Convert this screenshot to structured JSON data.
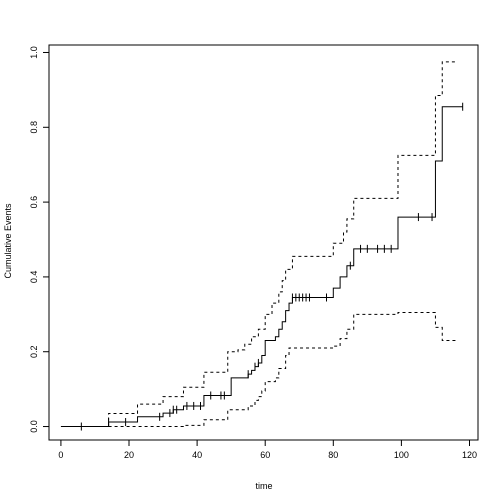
{
  "chart_data": {
    "type": "line",
    "xlabel": "time",
    "ylabel": "Cumulative Events",
    "xlim": [
      -3.5,
      122.5
    ],
    "ylim": [
      -0.036,
      1.02
    ],
    "grid": false,
    "x_ticks": [
      0,
      20,
      40,
      60,
      80,
      100,
      120
    ],
    "y_ticks": [
      0.0,
      0.2,
      0.4,
      0.6,
      0.8,
      1.0
    ],
    "x_tick_labels": [
      "0",
      "20",
      "40",
      "60",
      "80",
      "100",
      "120"
    ],
    "y_tick_labels": [
      "0.0",
      "0.2",
      "0.4",
      "0.6",
      "0.8",
      "1.0"
    ],
    "series": [
      {
        "style": "solid",
        "steps": [
          [
            0,
            0
          ],
          [
            14,
            0.012
          ],
          [
            22.5,
            0.026
          ],
          [
            29,
            0.026
          ],
          [
            30,
            0.036
          ],
          [
            33,
            0.045
          ],
          [
            36,
            0.055
          ],
          [
            40,
            0.055
          ],
          [
            42,
            0.083
          ],
          [
            49,
            0.083
          ],
          [
            50,
            0.13
          ],
          [
            55,
            0.14
          ],
          [
            56,
            0.15
          ],
          [
            57,
            0.16
          ],
          [
            58,
            0.17
          ],
          [
            59,
            0.19
          ],
          [
            60,
            0.23
          ],
          [
            62,
            0.23
          ],
          [
            63,
            0.24
          ],
          [
            64,
            0.26
          ],
          [
            65,
            0.28
          ],
          [
            66,
            0.31
          ],
          [
            67,
            0.33
          ],
          [
            68,
            0.345
          ],
          [
            80,
            0.37
          ],
          [
            82,
            0.4
          ],
          [
            84,
            0.43
          ],
          [
            86,
            0.475
          ],
          [
            99,
            0.56
          ],
          [
            110,
            0.71
          ],
          [
            112,
            0.855
          ],
          [
            118,
            0.855
          ]
        ]
      },
      {
        "style": "dashed",
        "steps": [
          [
            14,
            0
          ],
          [
            14,
            0.035
          ],
          [
            22.5,
            0.06
          ],
          [
            30,
            0.08
          ],
          [
            36,
            0.105
          ],
          [
            42,
            0.145
          ],
          [
            49,
            0.2
          ],
          [
            52,
            0.205
          ],
          [
            54,
            0.22
          ],
          [
            56,
            0.24
          ],
          [
            58,
            0.26
          ],
          [
            60,
            0.3
          ],
          [
            62,
            0.33
          ],
          [
            64,
            0.36
          ],
          [
            65,
            0.39
          ],
          [
            66,
            0.42
          ],
          [
            68,
            0.455
          ],
          [
            80,
            0.49
          ],
          [
            83,
            0.52
          ],
          [
            84,
            0.555
          ],
          [
            86,
            0.61
          ],
          [
            99,
            0.725
          ],
          [
            110,
            0.885
          ],
          [
            112,
            0.975
          ],
          [
            116,
            0.975
          ]
        ]
      },
      {
        "style": "dashed",
        "steps": [
          [
            14,
            0
          ],
          [
            36,
            0.003
          ],
          [
            42,
            0.018
          ],
          [
            49,
            0.045
          ],
          [
            55,
            0.055
          ],
          [
            57,
            0.07
          ],
          [
            58,
            0.08
          ],
          [
            59,
            0.095
          ],
          [
            60,
            0.12
          ],
          [
            63,
            0.13
          ],
          [
            64,
            0.155
          ],
          [
            66,
            0.19
          ],
          [
            67,
            0.21
          ],
          [
            80,
            0.215
          ],
          [
            82,
            0.235
          ],
          [
            84,
            0.26
          ],
          [
            86,
            0.3
          ],
          [
            99,
            0.305
          ],
          [
            110,
            0.265
          ],
          [
            112,
            0.23
          ],
          [
            116,
            0.23
          ]
        ]
      }
    ],
    "censor_marks": [
      6,
      14,
      19,
      29,
      32,
      33,
      34,
      37,
      39,
      41,
      44,
      47,
      48,
      55,
      57,
      58,
      68,
      69,
      70,
      71,
      72,
      73,
      78,
      85,
      88,
      90,
      93,
      95,
      97,
      105,
      109,
      118
    ]
  }
}
